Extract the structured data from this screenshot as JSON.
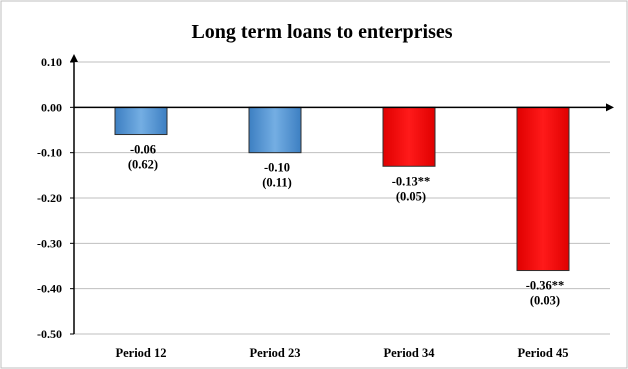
{
  "chart_data": {
    "type": "bar",
    "title": "Long term loans to enterprises",
    "categories": [
      "Period 12",
      "Period 23",
      "Period 34",
      "Period 45"
    ],
    "values": [
      -0.06,
      -0.1,
      -0.13,
      -0.36
    ],
    "data_labels": [
      {
        "value": "-0.06",
        "pvalue": "(0.62)"
      },
      {
        "value": "-0.10",
        "pvalue": "(0.11)"
      },
      {
        "value": "-0.13**",
        "pvalue": "(0.05)"
      },
      {
        "value": "-0.36**",
        "pvalue": "(0.03)"
      }
    ],
    "bar_colors": [
      "#5b9bd5",
      "#5b9bd5",
      "#ff0000",
      "#ff0000"
    ],
    "yticks": [
      "0.10",
      "0.00",
      "-0.10",
      "-0.20",
      "-0.30",
      "-0.40",
      "-0.50"
    ],
    "ytick_values": [
      0.1,
      0.0,
      -0.1,
      -0.2,
      -0.3,
      -0.4,
      -0.5
    ],
    "ylim": [
      -0.5,
      0.1
    ],
    "grid": true,
    "legend": "none"
  }
}
